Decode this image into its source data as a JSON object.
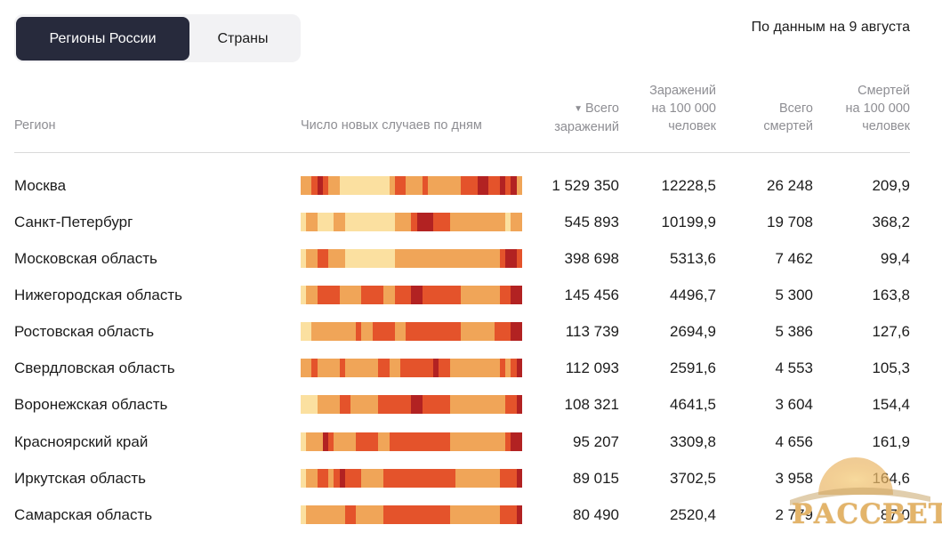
{
  "tabs": [
    {
      "label": "Регионы России",
      "active": true
    },
    {
      "label": "Страны",
      "active": false
    }
  ],
  "date_note": "По данным на 9 августа",
  "headers": {
    "region": "Регион",
    "trend": "Число новых случаев по дням",
    "total_cases_line1": "Всего",
    "total_cases_line2": "заражений",
    "cases_per_100k_line1": "Заражений",
    "cases_per_100k_line2": "на 100 000",
    "cases_per_100k_line3": "человек",
    "total_deaths_line1": "Всего",
    "total_deaths_line2": "смертей",
    "deaths_per_100k_line1": "Смертей",
    "deaths_per_100k_line2": "на 100 000",
    "deaths_per_100k_line3": "человек"
  },
  "colors": {
    "active_tab_bg": "#272a3c",
    "heat_low": "#fbe0a0",
    "heat_mid": "#f0a558",
    "heat_high": "#e4532b",
    "heat_max": "#b22222"
  },
  "rows": [
    {
      "region": "Москва",
      "total_cases": "1 529 350",
      "cases_per_100k": "12228,5",
      "total_deaths": "26 248",
      "deaths_per_100k": "209,9",
      "heat": [
        1,
        1,
        2,
        3,
        2,
        1,
        1,
        0,
        0,
        0,
        0,
        0,
        0,
        0,
        0,
        0,
        1,
        2,
        2,
        1,
        1,
        1,
        2,
        1,
        1,
        1,
        1,
        1,
        1,
        2,
        2,
        2,
        3,
        3,
        2,
        2,
        3,
        2,
        3,
        1
      ]
    },
    {
      "region": "Санкт-Петербург",
      "total_cases": "545 893",
      "cases_per_100k": "10199,9",
      "total_deaths": "19 708",
      "deaths_per_100k": "368,2",
      "heat": [
        0,
        1,
        1,
        0,
        0,
        0,
        1,
        1,
        0,
        0,
        0,
        0,
        0,
        0,
        0,
        0,
        0,
        1,
        1,
        1,
        2,
        3,
        3,
        3,
        2,
        2,
        2,
        1,
        1,
        1,
        1,
        1,
        1,
        1,
        1,
        1,
        1,
        0,
        1,
        1
      ]
    },
    {
      "region": "Московская область",
      "total_cases": "398 698",
      "cases_per_100k": "5313,6",
      "total_deaths": "7 462",
      "deaths_per_100k": "99,4",
      "heat": [
        0,
        1,
        1,
        2,
        2,
        1,
        1,
        1,
        0,
        0,
        0,
        0,
        0,
        0,
        0,
        0,
        0,
        1,
        1,
        1,
        1,
        1,
        1,
        1,
        1,
        1,
        1,
        1,
        1,
        1,
        1,
        1,
        1,
        1,
        1,
        1,
        2,
        3,
        3,
        2
      ]
    },
    {
      "region": "Нижегородская область",
      "total_cases": "145 456",
      "cases_per_100k": "4496,7",
      "total_deaths": "5 300",
      "deaths_per_100k": "163,8",
      "heat": [
        0,
        1,
        1,
        2,
        2,
        2,
        2,
        1,
        1,
        1,
        1,
        2,
        2,
        2,
        2,
        1,
        1,
        2,
        2,
        2,
        3,
        3,
        2,
        2,
        2,
        2,
        2,
        2,
        2,
        1,
        1,
        1,
        1,
        1,
        1,
        1,
        2,
        2,
        3,
        3
      ]
    },
    {
      "region": "Ростовская область",
      "total_cases": "113 739",
      "cases_per_100k": "2694,9",
      "total_deaths": "5 386",
      "deaths_per_100k": "127,6",
      "heat": [
        0,
        0,
        1,
        1,
        1,
        1,
        1,
        1,
        1,
        1,
        2,
        1,
        1,
        2,
        2,
        2,
        2,
        1,
        1,
        2,
        2,
        2,
        2,
        2,
        2,
        2,
        2,
        2,
        2,
        1,
        1,
        1,
        1,
        1,
        1,
        2,
        2,
        2,
        3,
        3
      ]
    },
    {
      "region": "Свердловская область",
      "total_cases": "112 093",
      "cases_per_100k": "2591,6",
      "total_deaths": "4 553",
      "deaths_per_100k": "105,3",
      "heat": [
        1,
        1,
        2,
        1,
        1,
        1,
        1,
        2,
        1,
        1,
        1,
        1,
        1,
        1,
        2,
        2,
        1,
        1,
        2,
        2,
        2,
        2,
        2,
        2,
        3,
        2,
        2,
        1,
        1,
        1,
        1,
        1,
        1,
        1,
        1,
        1,
        2,
        1,
        2,
        3
      ]
    },
    {
      "region": "Воронежская область",
      "total_cases": "108 321",
      "cases_per_100k": "4641,5",
      "total_deaths": "3 604",
      "deaths_per_100k": "154,4",
      "heat": [
        0,
        0,
        0,
        1,
        1,
        1,
        1,
        2,
        2,
        1,
        1,
        1,
        1,
        1,
        2,
        2,
        2,
        2,
        2,
        2,
        3,
        3,
        2,
        2,
        2,
        2,
        2,
        1,
        1,
        1,
        1,
        1,
        1,
        1,
        1,
        1,
        1,
        2,
        2,
        3
      ]
    },
    {
      "region": "Красноярский край",
      "total_cases": "95 207",
      "cases_per_100k": "3309,8",
      "total_deaths": "4 656",
      "deaths_per_100k": "161,9",
      "heat": [
        0,
        1,
        1,
        1,
        3,
        2,
        1,
        1,
        1,
        1,
        2,
        2,
        2,
        2,
        1,
        1,
        2,
        2,
        2,
        2,
        2,
        2,
        2,
        2,
        2,
        2,
        2,
        1,
        1,
        1,
        1,
        1,
        1,
        1,
        1,
        1,
        1,
        2,
        3,
        3
      ]
    },
    {
      "region": "Иркутская область",
      "total_cases": "89 015",
      "cases_per_100k": "3702,5",
      "total_deaths": "3 958",
      "deaths_per_100k": "164,6",
      "heat": [
        0,
        1,
        1,
        2,
        2,
        1,
        2,
        3,
        2,
        2,
        2,
        1,
        1,
        1,
        1,
        2,
        2,
        2,
        2,
        2,
        2,
        2,
        2,
        2,
        2,
        2,
        2,
        2,
        1,
        1,
        1,
        1,
        1,
        1,
        1,
        1,
        2,
        2,
        2,
        3
      ]
    },
    {
      "region": "Самарская область",
      "total_cases": "80 490",
      "cases_per_100k": "2520,4",
      "total_deaths": "2 779",
      "deaths_per_100k": "87,0",
      "heat": [
        0,
        1,
        1,
        1,
        1,
        1,
        1,
        1,
        2,
        2,
        1,
        1,
        1,
        1,
        1,
        2,
        2,
        2,
        2,
        2,
        2,
        2,
        2,
        2,
        2,
        2,
        2,
        1,
        1,
        1,
        1,
        1,
        1,
        1,
        1,
        1,
        2,
        2,
        2,
        3
      ]
    }
  ],
  "watermark": "РАССВЕТ"
}
